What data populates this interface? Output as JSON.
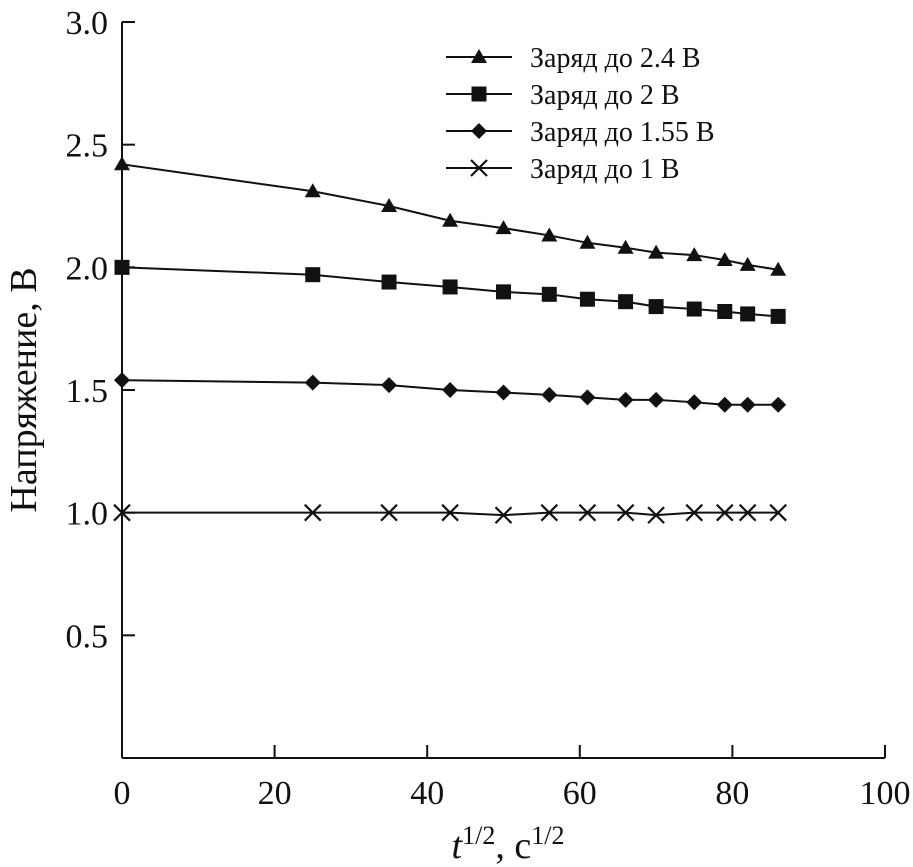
{
  "chart_data": {
    "type": "line",
    "title": "",
    "xlabel": {
      "base": "t",
      "exp": "1/2",
      "sep": ", ",
      "unit": "с",
      "unit_exp": "1/2"
    },
    "ylabel": "Напряжение, В",
    "xlim": [
      0,
      100
    ],
    "ylim": [
      0.0,
      3.0
    ],
    "x_ticks": [
      0,
      20,
      40,
      60,
      80,
      100
    ],
    "y_ticks": [
      0.5,
      1.0,
      1.5,
      2.0,
      2.5,
      3.0
    ],
    "x_tick_labels": [
      "0",
      "20",
      "40",
      "60",
      "80",
      "100"
    ],
    "y_tick_labels": [
      "0.5",
      "1.0",
      "1.5",
      "2.0",
      "2.5",
      "3.0"
    ],
    "grid": false,
    "legend_position": "top-right",
    "series": [
      {
        "name": "Заряд до 2.4 В",
        "marker": "triangle",
        "x": [
          0,
          25,
          35,
          43,
          50,
          56,
          61,
          66,
          70,
          75,
          79,
          82,
          86
        ],
        "y": [
          2.42,
          2.31,
          2.25,
          2.19,
          2.16,
          2.13,
          2.1,
          2.08,
          2.06,
          2.05,
          2.03,
          2.01,
          1.99
        ]
      },
      {
        "name": "Заряд до 2 В",
        "marker": "square",
        "x": [
          0,
          25,
          35,
          43,
          50,
          56,
          61,
          66,
          70,
          75,
          79,
          82,
          86
        ],
        "y": [
          2.0,
          1.97,
          1.94,
          1.92,
          1.9,
          1.89,
          1.87,
          1.86,
          1.84,
          1.83,
          1.82,
          1.81,
          1.8
        ]
      },
      {
        "name": "Заряд до 1.55 В",
        "marker": "diamond",
        "x": [
          0,
          25,
          35,
          43,
          50,
          56,
          61,
          66,
          70,
          75,
          79,
          82,
          86
        ],
        "y": [
          1.54,
          1.53,
          1.52,
          1.5,
          1.49,
          1.48,
          1.47,
          1.46,
          1.46,
          1.45,
          1.44,
          1.44,
          1.44
        ]
      },
      {
        "name": "Заряд до 1 В",
        "marker": "cross",
        "x": [
          0,
          25,
          35,
          43,
          50,
          56,
          61,
          66,
          70,
          75,
          79,
          82,
          86
        ],
        "y": [
          1.0,
          1.0,
          1.0,
          1.0,
          0.99,
          1.0,
          1.0,
          1.0,
          0.99,
          1.0,
          1.0,
          1.0,
          1.0
        ]
      }
    ]
  }
}
